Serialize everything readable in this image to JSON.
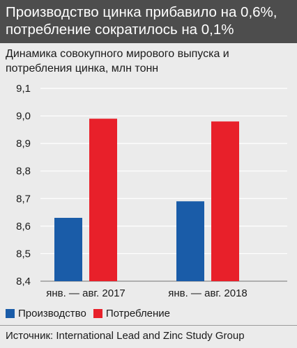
{
  "title": "Производство цинка прибавило на 0,6%, потребление сократилось на 0,1%",
  "subtitle": "Динамика совокупного мирового выпуска и потребления цинка, млн тонн",
  "source": "Источник: International Lead and Zinc Study Group",
  "colors": {
    "production": "#1a5ca8",
    "consumption": "#e8202a"
  },
  "chart_data": {
    "type": "bar",
    "categories": [
      "янв. — авг. 2017",
      "янв. — авг. 2018"
    ],
    "series": [
      {
        "name": "Производство",
        "values": [
          8.63,
          8.69
        ]
      },
      {
        "name": "Потребление",
        "values": [
          8.99,
          8.98
        ]
      }
    ],
    "ylim": [
      8.4,
      9.1
    ],
    "yticks": [
      "8,4",
      "8,5",
      "8,6",
      "8,7",
      "8,8",
      "8,9",
      "9,0",
      "9,1"
    ],
    "grid": true,
    "legend": "bottom-left"
  }
}
